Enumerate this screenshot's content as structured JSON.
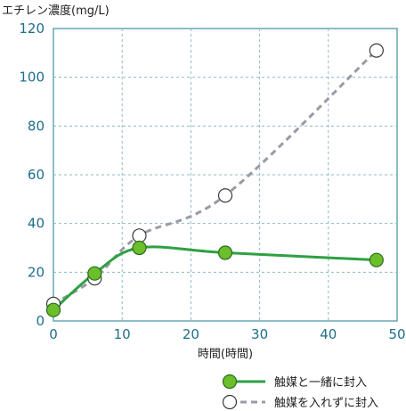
{
  "chart_data": {
    "type": "line",
    "ylabel": "エチレン濃度(mg/L)",
    "xlabel": "時間(時間)",
    "xlim": [
      0,
      50
    ],
    "ylim": [
      0,
      120
    ],
    "xticks": [
      0,
      10,
      20,
      30,
      40,
      50
    ],
    "yticks": [
      0,
      20,
      40,
      60,
      80,
      100,
      120
    ],
    "x_tick_labels": [
      "0",
      "10",
      "20",
      "30",
      "40",
      "50"
    ],
    "y_tick_labels": [
      "0",
      "20",
      "40",
      "60",
      "80",
      "100",
      "120"
    ],
    "grid": true,
    "legend_position": "bottom-right",
    "series": [
      {
        "name": "触媒と一緒に封入",
        "color": "#2ea043",
        "marker_fill": "#6bbf2a",
        "line_style": "solid",
        "x": [
          0,
          6,
          12.5,
          25,
          47
        ],
        "y": [
          4.5,
          19.5,
          30,
          28,
          25
        ]
      },
      {
        "name": "触媒を入れずに封入",
        "color": "#9a9aa8",
        "marker_fill": "#ffffff",
        "line_style": "dashed",
        "x": [
          0,
          6,
          12.5,
          25,
          47
        ],
        "y": [
          7,
          17.5,
          35,
          51.5,
          111
        ]
      }
    ]
  }
}
